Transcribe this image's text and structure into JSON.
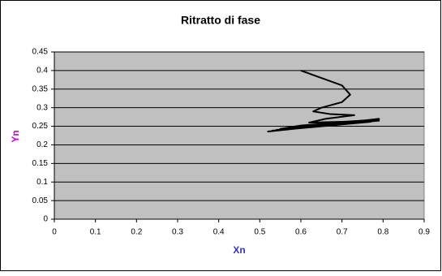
{
  "chart_data": {
    "type": "line",
    "title": "Ritratto di fase",
    "x_label": "Xn",
    "y_label": "Yn",
    "series": [
      {
        "color": "#000000",
        "x": [
          0.6,
          0.65,
          0.7,
          0.72,
          0.7,
          0.65,
          0.63,
          0.67,
          0.73,
          0.66,
          0.62,
          0.7,
          0.76,
          0.6,
          0.55,
          0.78,
          0.53,
          0.79,
          0.52,
          0.79,
          0.53,
          0.78,
          0.54,
          0.79,
          0.6,
          0.77,
          0.55,
          0.79
        ],
        "values": [
          0.4,
          0.38,
          0.36,
          0.335,
          0.315,
          0.3,
          0.29,
          0.283,
          0.28,
          0.27,
          0.26,
          0.262,
          0.266,
          0.252,
          0.243,
          0.268,
          0.238,
          0.27,
          0.236,
          0.268,
          0.237,
          0.266,
          0.24,
          0.265,
          0.248,
          0.262,
          0.24,
          0.267
        ]
      }
    ],
    "xlim": [
      0,
      0.9
    ],
    "xticks": [
      0,
      0.1,
      0.2,
      0.3,
      0.4,
      0.5,
      0.6,
      0.7,
      0.8,
      0.9
    ],
    "ylim": [
      0,
      0.45
    ],
    "yticks": [
      0,
      0.05,
      0.1,
      0.15,
      0.2,
      0.25,
      0.3,
      0.35,
      0.4,
      0.45
    ],
    "grid": true,
    "plot_background": "#c0c0c0",
    "x_label_color": "#3333cc",
    "y_label_color": "#cc00cc"
  }
}
